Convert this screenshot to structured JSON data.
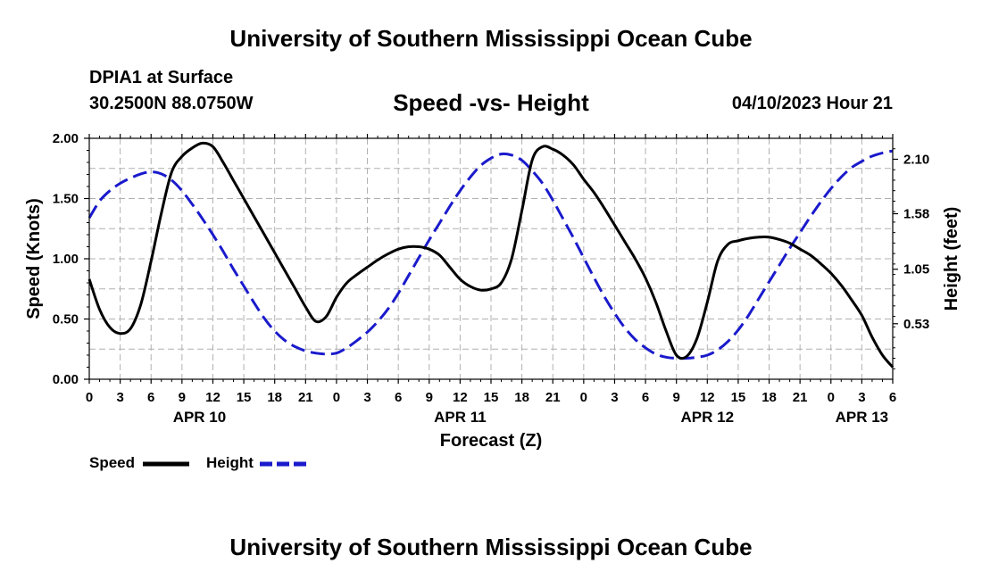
{
  "header": {
    "title": "University of Southern Mississippi Ocean Cube",
    "station": "DPIA1 at Surface",
    "coords": "30.2500N  88.0750W",
    "chart_title": "Speed -vs- Height",
    "run_date": "04/10/2023 Hour 21"
  },
  "footer": {
    "title": "University of Southern Mississippi Ocean Cube"
  },
  "legend": {
    "speed_label": "Speed",
    "height_label": "Height"
  },
  "colors": {
    "speed": "#000000",
    "height": "#1a1acc",
    "grid": "#b0b0b0"
  },
  "chart_data": {
    "type": "line",
    "title": "Speed -vs- Height",
    "xlabel": "Forecast (Z)",
    "ylabel": "Speed (Knots)",
    "y2label": "Height (feet)",
    "xlim": [
      0,
      78
    ],
    "ylim": [
      0,
      2.0
    ],
    "y2lim": [
      0,
      2.3
    ],
    "grid": true,
    "x_ticks": [
      0,
      3,
      6,
      9,
      12,
      15,
      18,
      21,
      24,
      27,
      30,
      33,
      36,
      39,
      42,
      45,
      48,
      51,
      54,
      57,
      60,
      63,
      66,
      69,
      72,
      75,
      78
    ],
    "x_tick_labels": [
      "0",
      "3",
      "6",
      "9",
      "12",
      "15",
      "18",
      "21",
      "0",
      "3",
      "6",
      "9",
      "12",
      "15",
      "18",
      "21",
      "0",
      "3",
      "6",
      "9",
      "12",
      "15",
      "18",
      "21",
      "0",
      "3",
      "6"
    ],
    "date_labels": [
      {
        "x": 12,
        "label": "APR 10"
      },
      {
        "x": 36,
        "label": "APR 11"
      },
      {
        "x": 60,
        "label": "APR 12"
      },
      {
        "x": 75,
        "label": "APR 13"
      }
    ],
    "y_ticks": [
      0,
      0.5,
      1.0,
      1.5,
      2.0
    ],
    "y_tick_labels": [
      "0.00",
      "0.50",
      "1.00",
      "1.50",
      "2.00"
    ],
    "y2_ticks": [
      0.53,
      1.05,
      1.58,
      2.1
    ],
    "y2_tick_labels": [
      "0.53",
      "1.05",
      "1.58",
      "2.10"
    ],
    "series": [
      {
        "name": "Speed",
        "axis": "left",
        "style": "solid",
        "x": [
          0,
          1,
          2,
          3,
          4,
          5,
          6,
          7,
          8,
          9,
          10,
          11,
          12,
          13,
          14,
          15,
          16,
          17,
          18,
          19,
          20,
          21,
          22,
          23,
          24,
          25,
          26,
          27,
          28,
          29,
          30,
          31,
          32,
          33,
          34,
          35,
          36,
          37,
          38,
          39,
          40,
          41,
          42,
          43,
          44,
          45,
          46,
          47,
          48,
          49,
          50,
          51,
          52,
          53,
          54,
          55,
          56,
          57,
          58,
          59,
          60,
          61,
          62,
          63,
          64,
          65,
          66,
          67,
          68,
          69,
          70,
          71,
          72,
          73,
          74,
          75,
          76,
          77,
          78
        ],
        "values": [
          0.83,
          0.58,
          0.43,
          0.38,
          0.42,
          0.62,
          0.98,
          1.38,
          1.72,
          1.85,
          1.92,
          1.96,
          1.93,
          1.8,
          1.65,
          1.5,
          1.35,
          1.2,
          1.05,
          0.9,
          0.75,
          0.6,
          0.48,
          0.52,
          0.68,
          0.8,
          0.87,
          0.93,
          0.99,
          1.04,
          1.08,
          1.1,
          1.1,
          1.08,
          1.03,
          0.93,
          0.83,
          0.77,
          0.74,
          0.75,
          0.8,
          1.0,
          1.4,
          1.82,
          1.93,
          1.91,
          1.86,
          1.78,
          1.66,
          1.55,
          1.42,
          1.28,
          1.14,
          1.0,
          0.84,
          0.64,
          0.4,
          0.2,
          0.19,
          0.34,
          0.64,
          0.98,
          1.12,
          1.15,
          1.17,
          1.18,
          1.18,
          1.16,
          1.13,
          1.08,
          1.03,
          0.96,
          0.88,
          0.78,
          0.66,
          0.53,
          0.35,
          0.2,
          0.1
        ]
      },
      {
        "name": "Height",
        "axis": "right",
        "style": "dashed",
        "x": [
          0,
          1,
          2,
          3,
          4,
          5,
          6,
          7,
          8,
          9,
          10,
          11,
          12,
          13,
          14,
          15,
          16,
          17,
          18,
          19,
          20,
          21,
          22,
          23,
          24,
          25,
          26,
          27,
          28,
          29,
          30,
          31,
          32,
          33,
          34,
          35,
          36,
          37,
          38,
          39,
          40,
          41,
          42,
          43,
          44,
          45,
          46,
          47,
          48,
          49,
          50,
          51,
          52,
          53,
          54,
          55,
          56,
          57,
          58,
          59,
          60,
          61,
          62,
          63,
          64,
          65,
          66,
          67,
          68,
          69,
          70,
          71,
          72,
          73,
          74,
          75,
          76,
          77,
          78
        ],
        "values": [
          1.54,
          1.7,
          1.8,
          1.87,
          1.92,
          1.96,
          1.98,
          1.96,
          1.9,
          1.8,
          1.67,
          1.53,
          1.38,
          1.22,
          1.05,
          0.89,
          0.73,
          0.58,
          0.46,
          0.37,
          0.31,
          0.27,
          0.25,
          0.24,
          0.25,
          0.3,
          0.37,
          0.45,
          0.55,
          0.67,
          0.82,
          0.99,
          1.16,
          1.33,
          1.49,
          1.65,
          1.8,
          1.93,
          2.04,
          2.11,
          2.15,
          2.14,
          2.09,
          1.99,
          1.87,
          1.71,
          1.53,
          1.35,
          1.16,
          0.97,
          0.79,
          0.63,
          0.49,
          0.38,
          0.3,
          0.24,
          0.21,
          0.2,
          0.2,
          0.21,
          0.23,
          0.28,
          0.36,
          0.47,
          0.61,
          0.77,
          0.93,
          1.09,
          1.25,
          1.4,
          1.55,
          1.69,
          1.82,
          1.93,
          2.02,
          2.08,
          2.13,
          2.16,
          2.18
        ]
      }
    ]
  }
}
